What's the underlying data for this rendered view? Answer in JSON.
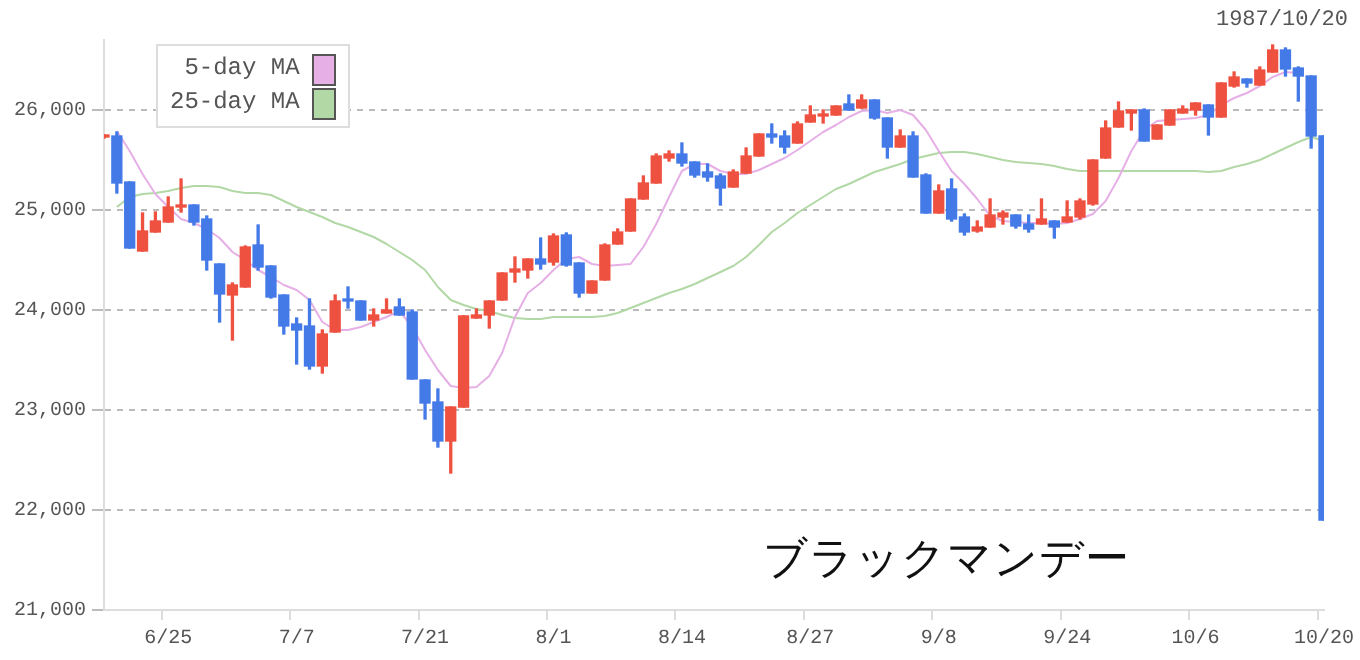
{
  "chart_data": {
    "type": "candlestick",
    "title": "1987/10/20",
    "categories": [
      null,
      null,
      null,
      null,
      null,
      "6/25",
      null,
      null,
      null,
      null,
      null,
      null,
      null,
      null,
      null,
      "7/7",
      null,
      null,
      null,
      null,
      null,
      null,
      null,
      null,
      null,
      "7/21",
      null,
      null,
      null,
      null,
      null,
      null,
      null,
      null,
      null,
      "8/1",
      null,
      null,
      null,
      null,
      null,
      null,
      null,
      null,
      null,
      "8/14",
      null,
      null,
      null,
      null,
      null,
      null,
      null,
      null,
      null,
      "8/27",
      null,
      null,
      null,
      null,
      null,
      null,
      null,
      null,
      null,
      "9/8",
      null,
      null,
      null,
      null,
      null,
      null,
      null,
      null,
      null,
      "9/24",
      null,
      null,
      null,
      null,
      null,
      null,
      null,
      null,
      null,
      "10/6",
      null,
      null,
      null,
      null,
      null,
      null,
      null,
      null,
      null,
      "10/20"
    ],
    "ohlc": [
      [
        25730,
        25750,
        25720,
        25740
      ],
      [
        25740,
        25780,
        25170,
        25270
      ],
      [
        25280,
        25280,
        24620,
        24620
      ],
      [
        24590,
        24970,
        24590,
        24790
      ],
      [
        24780,
        24980,
        24780,
        24890
      ],
      [
        24880,
        25130,
        24880,
        25030
      ],
      [
        25030,
        25310,
        24980,
        25040
      ],
      [
        25050,
        25050,
        24850,
        24880
      ],
      [
        24910,
        24940,
        24400,
        24500
      ],
      [
        24460,
        24460,
        23880,
        24160
      ],
      [
        24150,
        24270,
        23700,
        24250
      ],
      [
        24230,
        24640,
        24230,
        24630
      ],
      [
        24650,
        24850,
        24400,
        24430
      ],
      [
        24440,
        24440,
        24120,
        24130
      ],
      [
        24150,
        24150,
        23760,
        23840
      ],
      [
        23860,
        23920,
        23460,
        23800
      ],
      [
        23840,
        24110,
        23410,
        23440
      ],
      [
        23440,
        23800,
        23370,
        23760
      ],
      [
        23780,
        24150,
        23780,
        24090
      ],
      [
        24110,
        24230,
        24020,
        24090
      ],
      [
        24090,
        24090,
        23900,
        23900
      ],
      [
        23900,
        24010,
        23840,
        23950
      ],
      [
        23970,
        24110,
        23970,
        24000
      ],
      [
        24030,
        24110,
        23950,
        23950
      ],
      [
        23980,
        24000,
        23310,
        23310
      ],
      [
        23300,
        23300,
        22910,
        23070
      ],
      [
        23080,
        23210,
        22630,
        22690
      ],
      [
        22690,
        23030,
        22370,
        23030
      ],
      [
        23030,
        23940,
        23030,
        23940
      ],
      [
        23920,
        24010,
        23920,
        23950
      ],
      [
        23950,
        24090,
        23820,
        24090
      ],
      [
        24100,
        24370,
        24100,
        24370
      ],
      [
        24380,
        24530,
        24280,
        24410
      ],
      [
        24400,
        24510,
        24320,
        24510
      ],
      [
        24510,
        24720,
        24410,
        24460
      ],
      [
        24480,
        24760,
        24450,
        24740
      ],
      [
        24750,
        24770,
        24440,
        24450
      ],
      [
        24470,
        24470,
        24130,
        24170
      ],
      [
        24170,
        24290,
        24170,
        24290
      ],
      [
        24300,
        24660,
        24300,
        24650
      ],
      [
        24660,
        24810,
        24660,
        24780
      ],
      [
        24790,
        25110,
        24790,
        25110
      ],
      [
        25110,
        25340,
        25110,
        25270
      ],
      [
        25270,
        25560,
        25270,
        25540
      ],
      [
        25520,
        25590,
        25490,
        25560
      ],
      [
        25560,
        25670,
        25440,
        25470
      ],
      [
        25480,
        25480,
        25330,
        25350
      ],
      [
        25380,
        25460,
        25290,
        25330
      ],
      [
        25340,
        25360,
        25050,
        25220
      ],
      [
        25230,
        25400,
        25230,
        25380
      ],
      [
        25370,
        25620,
        25370,
        25540
      ],
      [
        25540,
        25760,
        25540,
        25760
      ],
      [
        25760,
        25860,
        25670,
        25730
      ],
      [
        25740,
        25790,
        25570,
        25630
      ],
      [
        25670,
        25880,
        25670,
        25860
      ],
      [
        25880,
        26040,
        25880,
        25950
      ],
      [
        25940,
        26000,
        25870,
        25950
      ],
      [
        25950,
        26040,
        25950,
        26040
      ],
      [
        26060,
        26150,
        26000,
        26000
      ],
      [
        26020,
        26150,
        26020,
        26100
      ],
      [
        26100,
        26100,
        25910,
        25920
      ],
      [
        25920,
        25920,
        25520,
        25630
      ],
      [
        25630,
        25800,
        25630,
        25740
      ],
      [
        25740,
        25780,
        25330,
        25330
      ],
      [
        25350,
        25360,
        24970,
        24970
      ],
      [
        24970,
        25250,
        24970,
        25190
      ],
      [
        25210,
        25310,
        24890,
        24910
      ],
      [
        24930,
        24960,
        24750,
        24780
      ],
      [
        24790,
        24890,
        24780,
        24830
      ],
      [
        24830,
        25110,
        24830,
        24950
      ],
      [
        24930,
        24990,
        24860,
        24970
      ],
      [
        24950,
        24950,
        24820,
        24840
      ],
      [
        24860,
        24950,
        24780,
        24810
      ],
      [
        24860,
        25110,
        24860,
        24910
      ],
      [
        24890,
        24890,
        24720,
        24830
      ],
      [
        24880,
        25090,
        24880,
        24930
      ],
      [
        24930,
        25110,
        24910,
        25090
      ],
      [
        25060,
        25500,
        25050,
        25500
      ],
      [
        25520,
        25890,
        25520,
        25820
      ],
      [
        25830,
        26080,
        25830,
        25990
      ],
      [
        25970,
        26000,
        25800,
        26000
      ],
      [
        26000,
        26010,
        25690,
        25690
      ],
      [
        25710,
        25850,
        25710,
        25850
      ],
      [
        25850,
        26000,
        25850,
        26000
      ],
      [
        25970,
        26040,
        25970,
        26010
      ],
      [
        26000,
        26070,
        25950,
        26070
      ],
      [
        26050,
        26050,
        25750,
        25930
      ],
      [
        25930,
        26270,
        25930,
        26270
      ],
      [
        26240,
        26380,
        26230,
        26330
      ],
      [
        26310,
        26310,
        26230,
        26270
      ],
      [
        26250,
        26430,
        26250,
        26400
      ],
      [
        26380,
        26650,
        26380,
        26600
      ],
      [
        26600,
        26620,
        26340,
        26410
      ],
      [
        26420,
        26430,
        26090,
        26340
      ],
      [
        26340,
        26340,
        25620,
        25740
      ],
      [
        25740,
        25740,
        21900,
        21900
      ]
    ],
    "colors": [
      "#ef5140",
      "#4479e8",
      "#4479e8",
      "#ef5140",
      "#ef5140",
      "#ef5140",
      "#ef5140",
      "#4479e8",
      "#4479e8",
      "#4479e8",
      "#ef5140",
      "#ef5140",
      "#4479e8",
      "#4479e8",
      "#4479e8",
      "#4479e8",
      "#4479e8",
      "#ef5140",
      "#ef5140",
      "#4479e8",
      "#4479e8",
      "#ef5140",
      "#ef5140",
      "#4479e8",
      "#4479e8",
      "#4479e8",
      "#4479e8",
      "#ef5140",
      "#ef5140",
      "#ef5140",
      "#ef5140",
      "#ef5140",
      "#ef5140",
      "#ef5140",
      "#4479e8",
      "#ef5140",
      "#4479e8",
      "#4479e8",
      "#ef5140",
      "#ef5140",
      "#ef5140",
      "#ef5140",
      "#ef5140",
      "#ef5140",
      "#ef5140",
      "#4479e8",
      "#4479e8",
      "#4479e8",
      "#4479e8",
      "#ef5140",
      "#ef5140",
      "#ef5140",
      "#4479e8",
      "#4479e8",
      "#ef5140",
      "#ef5140",
      "#ef5140",
      "#ef5140",
      "#4479e8",
      "#ef5140",
      "#4479e8",
      "#4479e8",
      "#ef5140",
      "#4479e8",
      "#4479e8",
      "#ef5140",
      "#4479e8",
      "#4479e8",
      "#ef5140",
      "#ef5140",
      "#ef5140",
      "#4479e8",
      "#4479e8",
      "#ef5140",
      "#4479e8",
      "#ef5140",
      "#ef5140",
      "#ef5140",
      "#ef5140",
      "#ef5140",
      "#ef5140",
      "#4479e8",
      "#ef5140",
      "#ef5140",
      "#ef5140",
      "#ef5140",
      "#4479e8",
      "#ef5140",
      "#ef5140",
      "#4479e8",
      "#ef5140",
      "#ef5140",
      "#4479e8",
      "#4479e8",
      "#4479e8",
      "#4479e8"
    ],
    "series": [
      {
        "name": "5-day MA",
        "type": "line",
        "color": "#e6b0e6",
        "values": [
          null,
          25790,
          25590,
          25360,
          25160,
          25030,
          24910,
          24870,
          24810,
          24720,
          24580,
          24500,
          24400,
          24330,
          24250,
          24200,
          24100,
          23880,
          23800,
          23800,
          23830,
          23880,
          23930,
          23990,
          23830,
          23600,
          23400,
          23240,
          23220,
          23230,
          23340,
          23570,
          23930,
          24170,
          24270,
          24400,
          24510,
          24530,
          24460,
          24440,
          24450,
          24460,
          24630,
          24860,
          25130,
          25390,
          25460,
          25460,
          25390,
          25360,
          25360,
          25400,
          25460,
          25520,
          25600,
          25690,
          25780,
          25850,
          25930,
          25990,
          26000,
          25970,
          26000,
          25950,
          25800,
          25590,
          25390,
          25260,
          25110,
          24940,
          24890,
          24880,
          24870,
          24870,
          24860,
          24870,
          24910,
          24960,
          25090,
          25320,
          25590,
          25800,
          25890,
          25900,
          25910,
          25920,
          25950,
          26050,
          26120,
          26170,
          26240,
          26330,
          26380,
          26370,
          null,
          null
        ]
      },
      {
        "name": "25-day MA",
        "type": "line",
        "color": "#b2d8a6",
        "values": [
          null,
          25030,
          25130,
          25160,
          25170,
          25190,
          25220,
          25240,
          25240,
          25230,
          25190,
          25170,
          25170,
          25150,
          25090,
          25030,
          24980,
          24930,
          24870,
          24830,
          24780,
          24730,
          24660,
          24580,
          24500,
          24400,
          24230,
          24100,
          24050,
          24010,
          23990,
          23950,
          23920,
          23910,
          23910,
          23930,
          23930,
          23930,
          23930,
          23940,
          23970,
          24020,
          24070,
          24120,
          24170,
          24210,
          24260,
          24320,
          24380,
          24440,
          24530,
          24650,
          24780,
          24870,
          24970,
          25050,
          25130,
          25210,
          25260,
          25320,
          25380,
          25420,
          25460,
          25510,
          25540,
          25570,
          25580,
          25580,
          25560,
          25530,
          25500,
          25480,
          25470,
          25460,
          25440,
          25410,
          25390,
          25390,
          25390,
          25390,
          25390,
          25390,
          25390,
          25390,
          25390,
          25390,
          25380,
          25390,
          25430,
          25460,
          25500,
          25560,
          25620,
          25680,
          25730,
          25690
        ]
      }
    ],
    "marker": "none",
    "ylim": [
      21000,
      26700
    ],
    "yticks": [
      {
        "value": 21000,
        "label": "21,000"
      },
      {
        "value": 22000,
        "label": "22,000"
      },
      {
        "value": 23000,
        "label": "23,000"
      },
      {
        "value": 24000,
        "label": "24,000"
      },
      {
        "value": 25000,
        "label": "25,000"
      },
      {
        "value": 26000,
        "label": "26,000"
      }
    ],
    "grid": "y",
    "legend": "top left",
    "annotations": [
      "ブラックマンデー"
    ]
  }
}
